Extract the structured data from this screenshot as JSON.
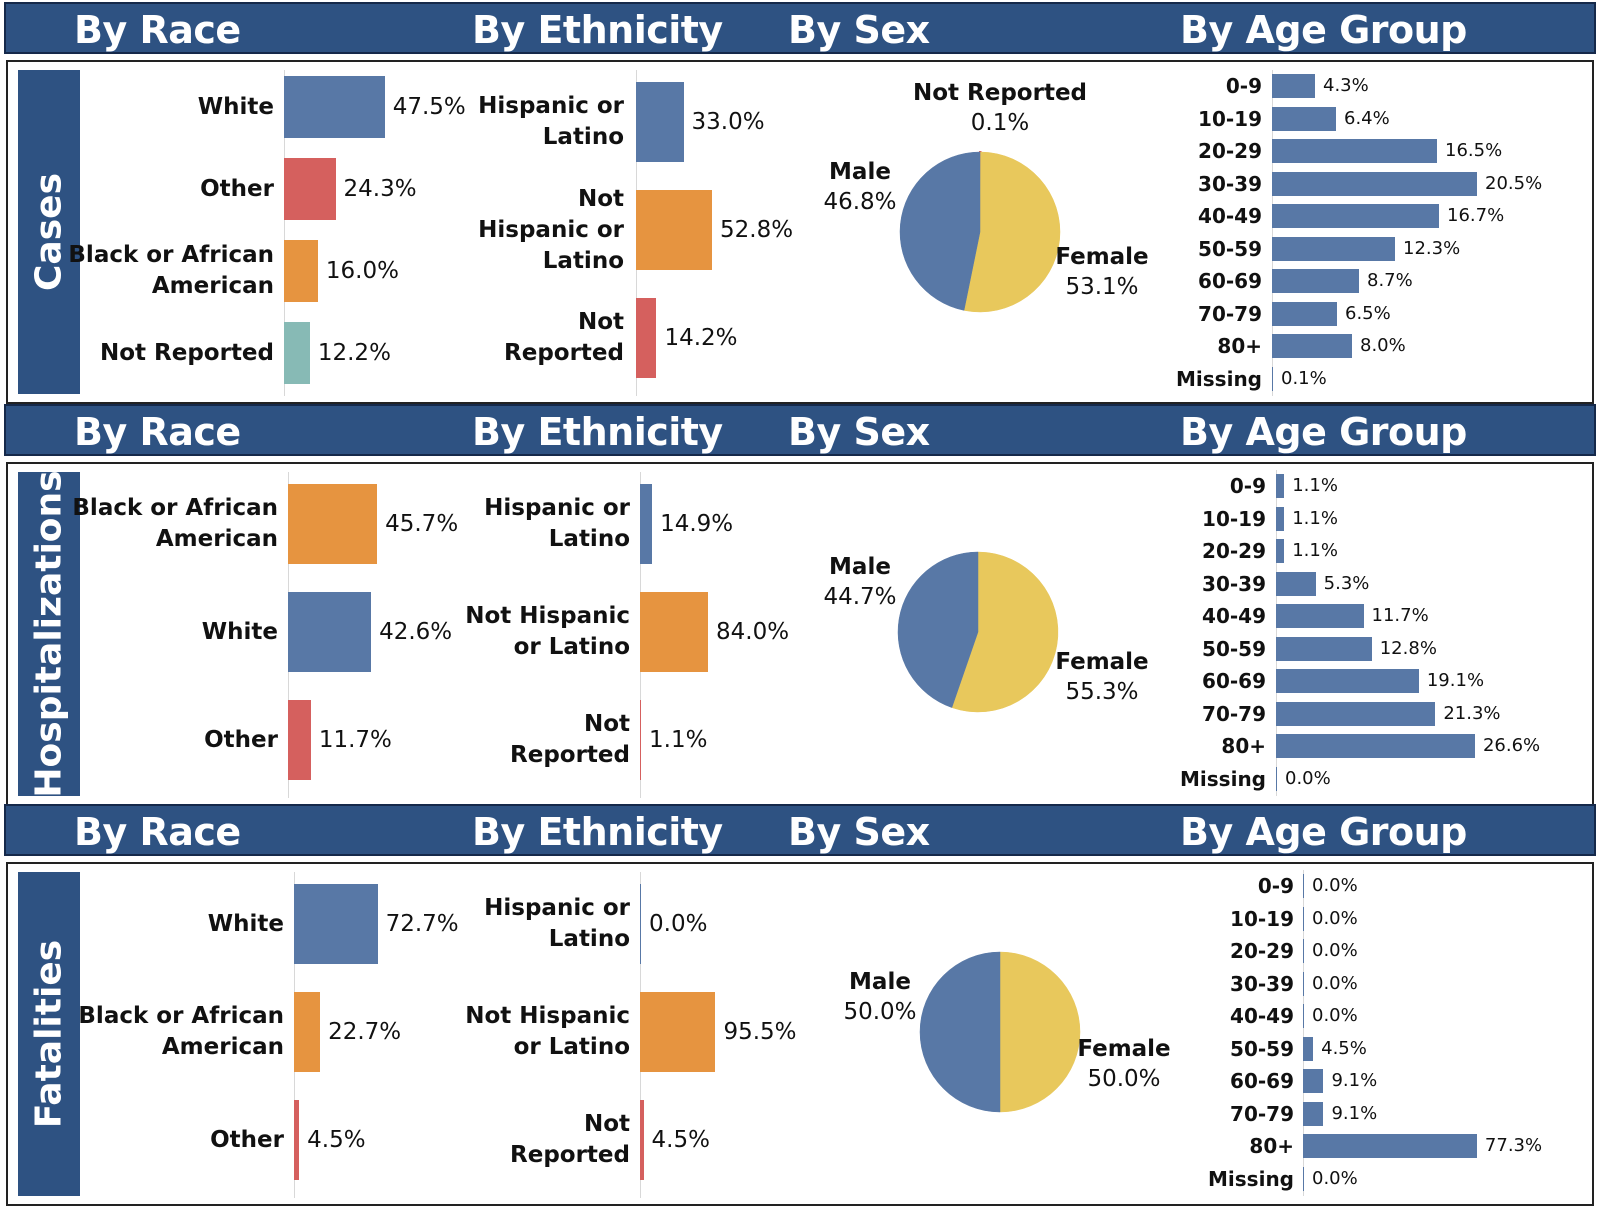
{
  "colors": {
    "header_bg": "#2e5282",
    "blue": "#5878a6",
    "orange": "#e69440",
    "red": "#d5605e",
    "teal": "#87bab5",
    "yellow": "#e8c85c",
    "red_slice": "#d5605e"
  },
  "headers": {
    "race": "By Race",
    "ethnicity": "By Ethnicity",
    "sex": "By Sex",
    "age": "By Age Group"
  },
  "chart_data": [
    {
      "section": "Cases",
      "race": {
        "type": "bar",
        "title": "By Race",
        "categories": [
          "White",
          "Other",
          "Black or African\nAmerican",
          "Not Reported"
        ],
        "values": [
          47.5,
          24.3,
          16.0,
          12.2
        ],
        "labels": [
          "47.5%",
          "24.3%",
          "16.0%",
          "12.2%"
        ],
        "colors": [
          "blue",
          "red",
          "orange",
          "teal"
        ]
      },
      "ethnicity": {
        "type": "bar",
        "title": "By Ethnicity",
        "categories": [
          "Hispanic or\nLatino",
          "Not\nHispanic or\nLatino",
          "Not\nReported"
        ],
        "values": [
          33.0,
          52.8,
          14.2
        ],
        "labels": [
          "33.0%",
          "52.8%",
          "14.2%"
        ],
        "colors": [
          "blue",
          "orange",
          "red"
        ]
      },
      "sex": {
        "type": "pie",
        "title": "By Sex",
        "categories": [
          "Male",
          "Female",
          "Not Reported"
        ],
        "values": [
          46.8,
          53.1,
          0.1
        ],
        "labels": [
          "46.8%",
          "53.1%",
          "0.1%"
        ],
        "colors": [
          "blue",
          "yellow",
          "red_slice"
        ]
      },
      "age": {
        "type": "bar",
        "title": "By Age Group",
        "categories": [
          "0-9",
          "10-19",
          "20-29",
          "30-39",
          "40-49",
          "50-59",
          "60-69",
          "70-79",
          "80+",
          "Missing"
        ],
        "values": [
          4.3,
          6.4,
          16.5,
          20.5,
          16.7,
          12.3,
          8.7,
          6.5,
          8.0,
          0.1
        ],
        "labels": [
          "4.3%",
          "6.4%",
          "16.5%",
          "20.5%",
          "16.7%",
          "12.3%",
          "8.7%",
          "6.5%",
          "8.0%",
          "0.1%"
        ]
      }
    },
    {
      "section": "Hospitalizations",
      "race": {
        "type": "bar",
        "title": "By Race",
        "categories": [
          "Black or African\nAmerican",
          "White",
          "Other"
        ],
        "values": [
          45.7,
          42.6,
          11.7
        ],
        "labels": [
          "45.7%",
          "42.6%",
          "11.7%"
        ],
        "colors": [
          "orange",
          "blue",
          "red"
        ]
      },
      "ethnicity": {
        "type": "bar",
        "title": "By Ethnicity",
        "categories": [
          "Hispanic or\nLatino",
          "Not Hispanic\nor Latino",
          "Not\nReported"
        ],
        "values": [
          14.9,
          84.0,
          1.1
        ],
        "labels": [
          "14.9%",
          "84.0%",
          "1.1%"
        ],
        "colors": [
          "blue",
          "orange",
          "red"
        ]
      },
      "sex": {
        "type": "pie",
        "title": "By Sex",
        "categories": [
          "Male",
          "Female"
        ],
        "values": [
          44.7,
          55.3
        ],
        "labels": [
          "44.7%",
          "55.3%"
        ],
        "colors": [
          "blue",
          "yellow"
        ]
      },
      "age": {
        "type": "bar",
        "title": "By Age Group",
        "categories": [
          "0-9",
          "10-19",
          "20-29",
          "30-39",
          "40-49",
          "50-59",
          "60-69",
          "70-79",
          "80+",
          "Missing"
        ],
        "values": [
          1.1,
          1.1,
          1.1,
          5.3,
          11.7,
          12.8,
          19.1,
          21.3,
          26.6,
          0.0
        ],
        "labels": [
          "1.1%",
          "1.1%",
          "1.1%",
          "5.3%",
          "11.7%",
          "12.8%",
          "19.1%",
          "21.3%",
          "26.6%",
          "0.0%"
        ]
      }
    },
    {
      "section": "Fatalities",
      "race": {
        "type": "bar",
        "title": "By Race",
        "categories": [
          "White",
          "Black or African\nAmerican",
          "Other"
        ],
        "values": [
          72.7,
          22.7,
          4.5
        ],
        "labels": [
          "72.7%",
          "22.7%",
          "4.5%"
        ],
        "colors": [
          "blue",
          "orange",
          "red"
        ]
      },
      "ethnicity": {
        "type": "bar",
        "title": "By Ethnicity",
        "categories": [
          "Hispanic or\nLatino",
          "Not Hispanic\nor Latino",
          "Not\nReported"
        ],
        "values": [
          0.0,
          95.5,
          4.5
        ],
        "labels": [
          "0.0%",
          "95.5%",
          "4.5%"
        ],
        "colors": [
          "blue",
          "orange",
          "red"
        ]
      },
      "sex": {
        "type": "pie",
        "title": "By Sex",
        "categories": [
          "Male",
          "Female"
        ],
        "values": [
          50.0,
          50.0
        ],
        "labels": [
          "50.0%",
          "50.0%"
        ],
        "colors": [
          "blue",
          "yellow"
        ]
      },
      "age": {
        "type": "bar",
        "title": "By Age Group",
        "categories": [
          "0-9",
          "10-19",
          "20-29",
          "30-39",
          "40-49",
          "50-59",
          "60-69",
          "70-79",
          "80+",
          "Missing"
        ],
        "values": [
          0.0,
          0.0,
          0.0,
          0.0,
          0.0,
          4.5,
          9.1,
          9.1,
          77.3,
          0.0
        ],
        "labels": [
          "0.0%",
          "0.0%",
          "0.0%",
          "0.0%",
          "0.0%",
          "4.5%",
          "9.1%",
          "9.1%",
          "77.3%",
          "0.0%"
        ]
      }
    }
  ]
}
